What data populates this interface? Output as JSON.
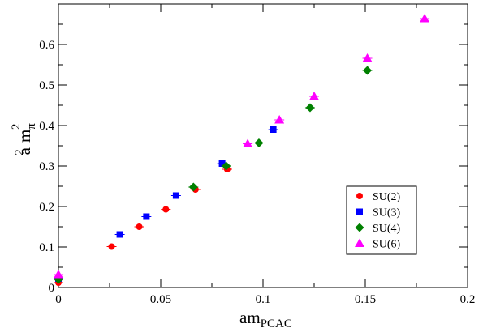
{
  "chart_data": {
    "type": "scatter",
    "xlabel": {
      "main": "am",
      "sub": "PCAC"
    },
    "ylabel": {
      "a": "a",
      "a_sup": "2",
      "m": "m",
      "m_sub": "π",
      "m_sup": "2"
    },
    "xlim": [
      0,
      0.2
    ],
    "ylim": [
      0,
      0.7
    ],
    "x_ticks": [
      0,
      0.05,
      0.1,
      0.15,
      0.2
    ],
    "x_tick_labels": [
      "0",
      "0.05",
      "0.1",
      "0.15",
      "0.2"
    ],
    "y_ticks": [
      0,
      0.1,
      0.2,
      0.3,
      0.4,
      0.5,
      0.6
    ],
    "y_tick_labels": [
      "0",
      "0.1",
      "0.2",
      "0.3",
      "0.4",
      "0.5",
      "0.6"
    ],
    "grid": false,
    "legend_position": "lower-right",
    "series": [
      {
        "name": "SU(2)",
        "marker": "circle",
        "color": "#ff0000",
        "points": [
          {
            "x": 0.0,
            "y": 0.012
          },
          {
            "x": 0.026,
            "y": 0.101
          },
          {
            "x": 0.0395,
            "y": 0.15
          },
          {
            "x": 0.0525,
            "y": 0.193
          },
          {
            "x": 0.067,
            "y": 0.242
          },
          {
            "x": 0.0825,
            "y": 0.292
          }
        ]
      },
      {
        "name": "SU(3)",
        "marker": "square",
        "color": "#0000ff",
        "points": [
          {
            "x": 0.0,
            "y": 0.022
          },
          {
            "x": 0.03,
            "y": 0.131
          },
          {
            "x": 0.043,
            "y": 0.175
          },
          {
            "x": 0.0575,
            "y": 0.227
          },
          {
            "x": 0.08,
            "y": 0.306
          },
          {
            "x": 0.105,
            "y": 0.39
          }
        ]
      },
      {
        "name": "SU(4)",
        "marker": "diamond",
        "color": "#008000",
        "points": [
          {
            "x": 0.0,
            "y": 0.02
          },
          {
            "x": 0.066,
            "y": 0.248
          },
          {
            "x": 0.082,
            "y": 0.3
          },
          {
            "x": 0.098,
            "y": 0.357
          },
          {
            "x": 0.123,
            "y": 0.444
          },
          {
            "x": 0.151,
            "y": 0.536
          }
        ]
      },
      {
        "name": "SU(6)",
        "marker": "triangle",
        "color": "#ff00ff",
        "points": [
          {
            "x": 0.0,
            "y": 0.032
          },
          {
            "x": 0.0925,
            "y": 0.355
          },
          {
            "x": 0.108,
            "y": 0.414
          },
          {
            "x": 0.125,
            "y": 0.472
          },
          {
            "x": 0.151,
            "y": 0.566
          },
          {
            "x": 0.179,
            "y": 0.664
          }
        ]
      }
    ]
  }
}
